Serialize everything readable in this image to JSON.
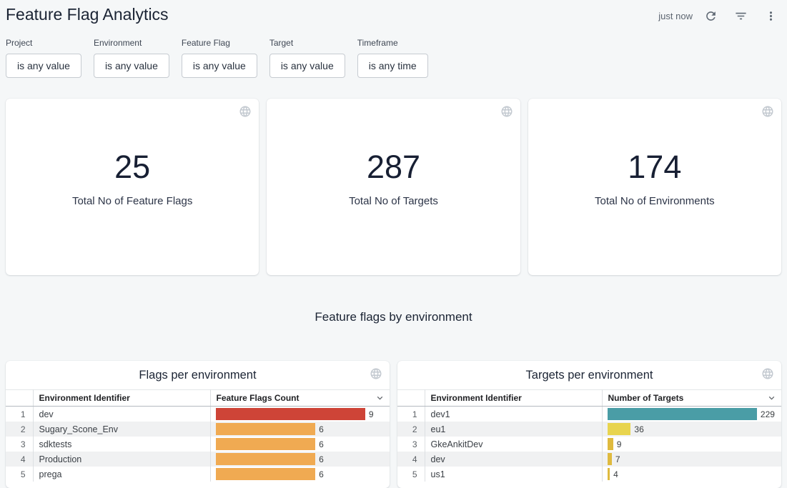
{
  "header": {
    "title": "Feature Flag Analytics",
    "refreshed_label": "just now"
  },
  "filters": [
    {
      "label": "Project",
      "value": "is any value"
    },
    {
      "label": "Environment",
      "value": "is any value"
    },
    {
      "label": "Feature Flag",
      "value": "is any value"
    },
    {
      "label": "Target",
      "value": "is any value"
    },
    {
      "label": "Timeframe",
      "value": "is any time"
    }
  ],
  "stat_cards": [
    {
      "value": "25",
      "label": "Total No of Feature Flags"
    },
    {
      "value": "287",
      "label": "Total No of Targets"
    },
    {
      "value": "174",
      "label": "Total No of Environments"
    }
  ],
  "section_title": "Feature flags by environment",
  "tables": [
    {
      "title": "Flags per environment",
      "id_header": "Environment Identifier",
      "value_header": "Feature Flags Count",
      "rows": [
        {
          "index": 1,
          "identifier": "dev",
          "value": 9,
          "bar_color": "#ce4437"
        },
        {
          "index": 2,
          "identifier": "Sugary_Scone_Env",
          "value": 6,
          "bar_color": "#f0aa52"
        },
        {
          "index": 3,
          "identifier": "sdktests",
          "value": 6,
          "bar_color": "#f0aa52"
        },
        {
          "index": 4,
          "identifier": "Production",
          "value": 6,
          "bar_color": "#f0aa52"
        },
        {
          "index": 5,
          "identifier": "prega",
          "value": 6,
          "bar_color": "#f0aa52"
        }
      ]
    },
    {
      "title": "Targets per environment",
      "id_header": "Environment Identifier",
      "value_header": "Number of Targets",
      "rows": [
        {
          "index": 1,
          "identifier": "dev1",
          "value": 229,
          "bar_color": "#4a9da6"
        },
        {
          "index": 2,
          "identifier": "eu1",
          "value": 36,
          "bar_color": "#e8d44e"
        },
        {
          "index": 3,
          "identifier": "GkeAnkitDev",
          "value": 9,
          "bar_color": "#dfba3e"
        },
        {
          "index": 4,
          "identifier": "dev",
          "value": 7,
          "bar_color": "#dfba3e"
        },
        {
          "index": 5,
          "identifier": "us1",
          "value": 4,
          "bar_color": "#dfba3e"
        }
      ]
    }
  ],
  "chart_data": [
    {
      "type": "bar",
      "orientation": "horizontal",
      "title": "Flags per environment",
      "categories": [
        "dev",
        "Sugary_Scone_Env",
        "sdktests",
        "Production",
        "prega"
      ],
      "values": [
        9,
        6,
        6,
        6,
        6
      ],
      "xlabel": "Feature Flags Count",
      "ylabel": "Environment Identifier"
    },
    {
      "type": "bar",
      "orientation": "horizontal",
      "title": "Targets per environment",
      "categories": [
        "dev1",
        "eu1",
        "GkeAnkitDev",
        "dev",
        "us1"
      ],
      "values": [
        229,
        36,
        9,
        7,
        4
      ],
      "xlabel": "Number of Targets",
      "ylabel": "Environment Identifier"
    }
  ],
  "colors": {
    "page_background": "#f5f7f8",
    "title_text": "#1b2434",
    "bar_red": "#ce4437",
    "bar_orange": "#f0aa52",
    "bar_teal": "#4a9da6",
    "bar_yellow": "#e8d44e",
    "bar_gold": "#dfba3e"
  }
}
